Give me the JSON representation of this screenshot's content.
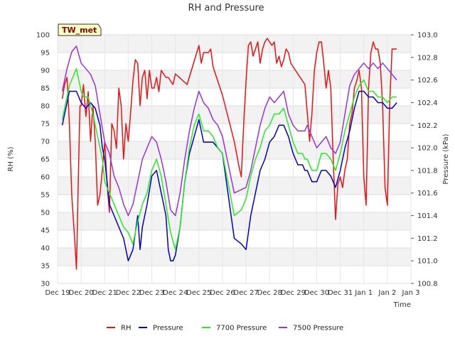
{
  "chart_data": {
    "type": "line",
    "title": "RH and Pressure",
    "badge": "TW_met",
    "xlabel": "Time",
    "ylabel_left": "RH (%)",
    "ylabel_right": "Pressure (kPa)",
    "x_ticks": [
      "Dec 19",
      "Dec 20",
      "Dec 21",
      "Dec 22",
      "Dec 23",
      "Dec 24",
      "Dec 25",
      "Dec 26",
      "Dec 27",
      "Dec 28",
      "Dec 29",
      "Dec 30",
      "Dec 31",
      "Jan 1",
      "Jan 2",
      "Jan 3"
    ],
    "xlim": [
      0,
      15
    ],
    "ylim_left": [
      30,
      100
    ],
    "ylim_right": [
      100.8,
      103.0
    ],
    "yticks_left": [
      30,
      35,
      40,
      45,
      50,
      55,
      60,
      65,
      70,
      75,
      80,
      85,
      90,
      95,
      100
    ],
    "yticks_right": [
      "100.8",
      "101.0",
      "101.2",
      "101.4",
      "101.6",
      "101.8",
      "102.0",
      "102.2",
      "102.4",
      "102.6",
      "102.8",
      "103.0"
    ],
    "grid": true,
    "legend_position": "bottom",
    "colors": {
      "RH": "#ee1111",
      "Pressure": "#0000cc",
      "7700 Pressure": "#22ee22",
      "7500 Pressure": "#9933dd"
    },
    "series": [
      {
        "name": "RH",
        "axis": "left",
        "x": [
          0.2,
          0.3,
          0.4,
          0.5,
          0.6,
          0.7,
          0.75,
          0.8,
          0.85,
          0.9,
          0.95,
          1.0,
          1.1,
          1.2,
          1.3,
          1.4,
          1.5,
          1.6,
          1.7,
          1.8,
          1.9,
          2.0,
          2.1,
          2.2,
          2.3,
          2.4,
          2.5,
          2.6,
          2.7,
          2.8,
          2.9,
          3.0,
          3.1,
          3.2,
          3.3,
          3.4,
          3.5,
          3.6,
          3.7,
          3.8,
          3.9,
          4.0,
          4.1,
          4.2,
          4.3,
          4.4,
          4.5,
          4.6,
          4.7,
          4.8,
          4.9,
          5.0,
          5.5,
          6.0,
          6.1,
          6.2,
          6.3,
          6.4,
          6.5,
          6.6,
          6.7,
          6.8,
          7.0,
          7.5,
          7.7,
          7.8,
          7.9,
          8.0,
          8.1,
          8.2,
          8.3,
          8.4,
          8.5,
          8.6,
          8.7,
          8.8,
          8.9,
          9.0,
          9.1,
          9.2,
          9.3,
          9.4,
          9.5,
          9.6,
          9.7,
          9.8,
          9.9,
          10.0,
          10.5,
          10.7,
          10.8,
          10.9,
          11.0,
          11.1,
          11.2,
          11.3,
          11.4,
          11.5,
          11.6,
          11.7,
          11.8,
          11.9,
          12.0,
          12.1,
          12.2,
          12.3,
          12.4,
          12.5,
          12.6,
          12.7,
          12.8,
          12.9,
          13.0,
          13.1,
          13.2,
          13.3,
          13.4,
          13.5,
          13.6,
          13.7,
          13.8,
          13.9,
          14.0,
          14.1,
          14.2,
          14.3,
          14.4
        ],
        "y": [
          82,
          86,
          88,
          75,
          55,
          45,
          40,
          34,
          50,
          65,
          80,
          80,
          86,
          77,
          84,
          70,
          80,
          70,
          52,
          55,
          62,
          70,
          58,
          50,
          75,
          73,
          68,
          85,
          80,
          65,
          75,
          70,
          78,
          87,
          93,
          92,
          80,
          88,
          90,
          82,
          90,
          85,
          85,
          88,
          84,
          90,
          89,
          88,
          88,
          87,
          86,
          89,
          86,
          97,
          92,
          95,
          95,
          95,
          96,
          91,
          89,
          87,
          83,
          70,
          63,
          60,
          75,
          87,
          97,
          98,
          94,
          96,
          98,
          92,
          96,
          98,
          99,
          98,
          97,
          98,
          92,
          94,
          91,
          93,
          96,
          95,
          92,
          91,
          86,
          70,
          78,
          90,
          95,
          98,
          98,
          92,
          85,
          90,
          85,
          65,
          48,
          58,
          60,
          57,
          62,
          65,
          75,
          78,
          85,
          87,
          90,
          85,
          60,
          52,
          85,
          95,
          98,
          96,
          96,
          92,
          80,
          57,
          52,
          81,
          96,
          96,
          96
        ],
        "width": 1.5
      },
      {
        "name": "Pressure",
        "axis": "right",
        "x": [
          0.2,
          0.3,
          0.4,
          0.5,
          0.6,
          0.8,
          1.0,
          1.2,
          1.4,
          1.6,
          1.8,
          1.9,
          2.0,
          2.2,
          2.4,
          2.6,
          2.8,
          3.0,
          3.2,
          3.4,
          3.5,
          3.6,
          3.7,
          3.8,
          4.0,
          4.2,
          4.4,
          4.6,
          4.7,
          4.8,
          4.9,
          5.0,
          5.2,
          5.4,
          5.6,
          5.8,
          6.0,
          6.2,
          6.4,
          6.6,
          6.8,
          7.0,
          7.5,
          7.8,
          8.0,
          8.2,
          8.4,
          8.6,
          8.8,
          9.0,
          9.2,
          9.4,
          9.6,
          9.8,
          10.0,
          10.2,
          10.4,
          10.5,
          10.6,
          10.8,
          11.0,
          11.2,
          11.4,
          11.6,
          11.8,
          12.0,
          12.2,
          12.4,
          12.6,
          12.8,
          13.0,
          13.2,
          13.4,
          13.6,
          13.8,
          14.0,
          14.2,
          14.4
        ],
        "y": [
          102.2,
          102.3,
          102.4,
          102.5,
          102.5,
          102.5,
          102.4,
          102.35,
          102.4,
          102.35,
          102.2,
          102.0,
          101.9,
          101.5,
          101.4,
          101.3,
          101.2,
          101.0,
          101.1,
          101.4,
          101.1,
          101.3,
          101.4,
          101.5,
          101.75,
          101.8,
          101.6,
          101.4,
          101.1,
          101.0,
          101.0,
          101.05,
          101.3,
          101.7,
          101.95,
          102.1,
          102.25,
          102.05,
          102.05,
          102.05,
          102.0,
          101.95,
          101.2,
          101.15,
          101.1,
          101.4,
          101.6,
          101.8,
          101.9,
          102.05,
          102.1,
          102.2,
          102.2,
          102.1,
          101.95,
          101.85,
          101.85,
          101.8,
          101.8,
          101.7,
          101.7,
          101.8,
          101.8,
          101.75,
          101.65,
          101.8,
          102.0,
          102.15,
          102.35,
          102.5,
          102.5,
          102.45,
          102.45,
          102.4,
          102.4,
          102.35,
          102.35,
          102.4
        ],
        "width": 1.5
      },
      {
        "name": "7700 Pressure",
        "axis": "right",
        "x": [
          0.2,
          0.3,
          0.4,
          0.5,
          0.6,
          0.8,
          1.0,
          1.1,
          1.3,
          1.5,
          1.7,
          1.9,
          2.0,
          2.2,
          2.4,
          2.6,
          2.8,
          3.0,
          3.2,
          3.4,
          3.6,
          3.8,
          4.0,
          4.2,
          4.4,
          4.6,
          4.8,
          5.0,
          5.2,
          5.4,
          5.6,
          5.8,
          6.0,
          6.2,
          6.4,
          6.6,
          6.8,
          7.0,
          7.5,
          7.8,
          8.0,
          8.2,
          8.4,
          8.6,
          8.8,
          9.0,
          9.2,
          9.4,
          9.6,
          9.8,
          10.0,
          10.2,
          10.4,
          10.5,
          10.6,
          10.8,
          11.0,
          11.2,
          11.4,
          11.6,
          11.8,
          12.0,
          12.2,
          12.4,
          12.6,
          12.8,
          13.0,
          13.2,
          13.4,
          13.6,
          13.8,
          14.0,
          14.2,
          14.4
        ],
        "y": [
          102.25,
          102.35,
          102.45,
          102.55,
          102.6,
          102.7,
          102.5,
          102.45,
          102.45,
          102.3,
          102.1,
          101.9,
          101.7,
          101.6,
          101.5,
          101.4,
          101.3,
          101.25,
          101.15,
          101.35,
          101.5,
          101.6,
          101.8,
          101.9,
          101.75,
          101.5,
          101.25,
          101.1,
          101.3,
          101.7,
          102.0,
          102.2,
          102.3,
          102.15,
          102.15,
          102.1,
          102.0,
          101.95,
          101.4,
          101.45,
          101.55,
          101.75,
          101.9,
          102.0,
          102.15,
          102.2,
          102.3,
          102.3,
          102.35,
          102.2,
          102.05,
          101.95,
          101.95,
          101.9,
          101.9,
          101.8,
          101.8,
          101.95,
          101.95,
          101.9,
          101.8,
          101.95,
          102.15,
          102.3,
          102.45,
          102.55,
          102.6,
          102.5,
          102.5,
          102.45,
          102.45,
          102.4,
          102.45,
          102.45
        ],
        "width": 1.5
      },
      {
        "name": "7500 Pressure",
        "axis": "right",
        "x": [
          0.2,
          0.4,
          0.6,
          0.8,
          1.0,
          1.2,
          1.4,
          1.6,
          1.8,
          2.0,
          2.2,
          2.4,
          2.6,
          2.8,
          3.0,
          3.2,
          3.4,
          3.6,
          3.8,
          4.0,
          4.2,
          4.4,
          4.6,
          4.8,
          5.0,
          5.2,
          5.4,
          5.6,
          5.8,
          6.0,
          6.2,
          6.4,
          6.6,
          6.8,
          7.0,
          7.5,
          8.0,
          8.2,
          8.4,
          8.6,
          8.8,
          9.0,
          9.2,
          9.4,
          9.6,
          9.8,
          10.0,
          10.2,
          10.4,
          10.5,
          10.6,
          10.8,
          11.0,
          11.2,
          11.4,
          11.6,
          11.8,
          12.0,
          12.2,
          12.4,
          12.6,
          12.8,
          13.0,
          13.2,
          13.4,
          13.6,
          13.8,
          14.0,
          14.2,
          14.4
        ],
        "y": [
          102.5,
          102.7,
          102.85,
          102.9,
          102.75,
          102.7,
          102.65,
          102.55,
          102.3,
          102.05,
          101.95,
          101.75,
          101.65,
          101.5,
          101.4,
          101.5,
          101.7,
          101.9,
          102.0,
          102.1,
          102.05,
          101.9,
          101.7,
          101.45,
          101.4,
          101.6,
          101.9,
          102.15,
          102.35,
          102.5,
          102.4,
          102.35,
          102.25,
          102.2,
          102.1,
          101.6,
          101.65,
          101.8,
          102.0,
          102.2,
          102.35,
          102.45,
          102.4,
          102.45,
          102.5,
          102.3,
          102.2,
          102.15,
          102.15,
          102.15,
          102.2,
          102.1,
          102.0,
          102.05,
          102.1,
          102.0,
          101.95,
          102.05,
          102.3,
          102.55,
          102.65,
          102.7,
          102.75,
          102.7,
          102.75,
          102.7,
          102.75,
          102.7,
          102.65,
          102.6
        ],
        "width": 1.5
      }
    ]
  }
}
